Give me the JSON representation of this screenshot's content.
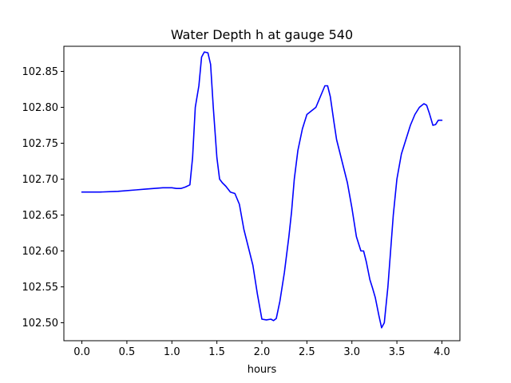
{
  "chart_data": {
    "type": "line",
    "title": "Water Depth h at gauge 540",
    "xlabel": "hours",
    "ylabel": "",
    "xlim": [
      -0.2,
      4.2
    ],
    "ylim": [
      102.475,
      102.885
    ],
    "x_ticks": [
      0.0,
      0.5,
      1.0,
      1.5,
      2.0,
      2.5,
      3.0,
      3.5,
      4.0
    ],
    "x_tick_labels": [
      "0.0",
      "0.5",
      "1.0",
      "1.5",
      "2.0",
      "2.5",
      "3.0",
      "3.5",
      "4.0"
    ],
    "y_ticks": [
      102.5,
      102.55,
      102.6,
      102.65,
      102.7,
      102.75,
      102.8,
      102.85
    ],
    "y_tick_labels": [
      "102.50",
      "102.55",
      "102.60",
      "102.65",
      "102.70",
      "102.75",
      "102.80",
      "102.85"
    ],
    "grid": false,
    "legend": "none",
    "series": [
      {
        "color": "#0000ff",
        "x": [
          0.0,
          0.2,
          0.4,
          0.6,
          0.7,
          0.8,
          0.9,
          1.0,
          1.05,
          1.1,
          1.15,
          1.2,
          1.23,
          1.26,
          1.3,
          1.33,
          1.36,
          1.4,
          1.43,
          1.46,
          1.5,
          1.53,
          1.56,
          1.6,
          1.65,
          1.7,
          1.75,
          1.8,
          1.83,
          1.86,
          1.9,
          1.95,
          2.0,
          2.05,
          2.1,
          2.13,
          2.16,
          2.2,
          2.25,
          2.28,
          2.3,
          2.33,
          2.36,
          2.4,
          2.45,
          2.5,
          2.55,
          2.6,
          2.65,
          2.7,
          2.73,
          2.76,
          2.8,
          2.83,
          2.86,
          2.9,
          2.95,
          3.0,
          3.05,
          3.1,
          3.13,
          3.16,
          3.2,
          3.23,
          3.26,
          3.3,
          3.33,
          3.36,
          3.4,
          3.43,
          3.46,
          3.5,
          3.55,
          3.6,
          3.65,
          3.7,
          3.75,
          3.8,
          3.83,
          3.86,
          3.9,
          3.93,
          3.96,
          4.0
        ],
        "y": [
          102.682,
          102.682,
          102.683,
          102.685,
          102.686,
          102.687,
          102.688,
          102.688,
          102.687,
          102.687,
          102.689,
          102.692,
          102.73,
          102.8,
          102.83,
          102.87,
          102.877,
          102.876,
          102.86,
          102.8,
          102.73,
          102.7,
          102.695,
          102.69,
          102.682,
          102.68,
          102.665,
          102.63,
          102.615,
          102.6,
          102.58,
          102.54,
          102.505,
          102.504,
          102.505,
          102.503,
          102.506,
          102.53,
          102.57,
          102.6,
          102.62,
          102.655,
          102.7,
          102.74,
          102.77,
          102.79,
          102.795,
          102.8,
          102.815,
          102.83,
          102.83,
          102.815,
          102.78,
          102.755,
          102.74,
          102.72,
          102.695,
          102.66,
          102.62,
          102.6,
          102.6,
          102.585,
          102.56,
          102.548,
          102.535,
          102.51,
          102.493,
          102.5,
          102.55,
          102.6,
          102.65,
          102.7,
          102.735,
          102.755,
          102.775,
          102.79,
          102.8,
          102.805,
          102.803,
          102.792,
          102.775,
          102.776,
          102.782,
          102.782
        ]
      }
    ]
  }
}
